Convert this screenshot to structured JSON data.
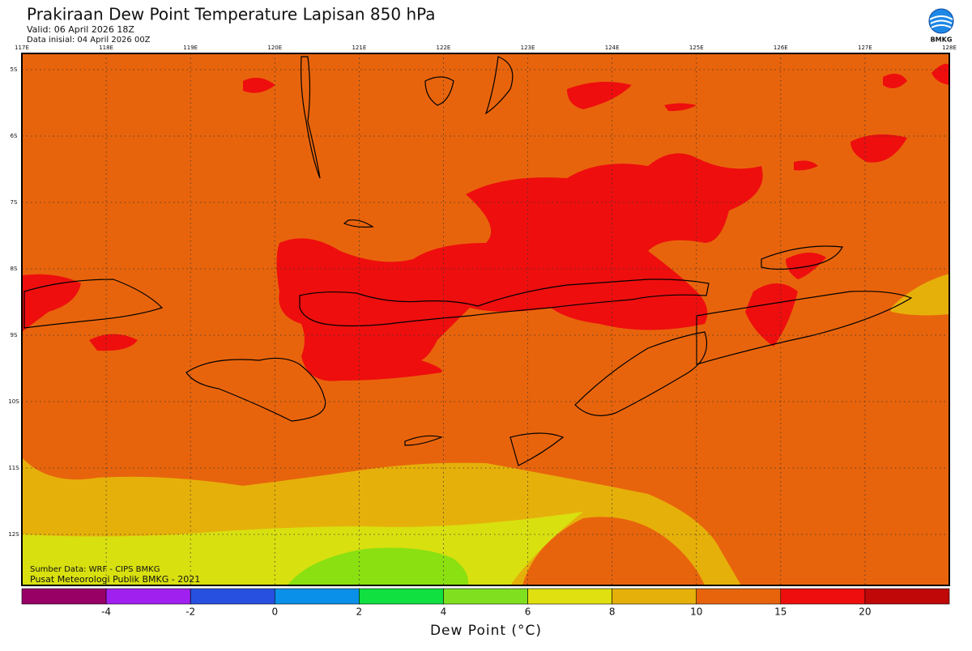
{
  "header": {
    "title": "Prakiraan Dew Point Temperature Lapisan 850 hPa",
    "valid": "Valid: 06 April 2026 18Z",
    "init": "Data inisial: 04 April 2026 00Z",
    "logo": "BMKG"
  },
  "map": {
    "lon_labels": [
      "117E",
      "118E",
      "119E",
      "120E",
      "121E",
      "122E",
      "123E",
      "124E",
      "125E",
      "126E",
      "127E",
      "128E"
    ],
    "lat_labels": [
      "5S",
      "6S",
      "7S",
      "8S",
      "9S",
      "10S",
      "11S",
      "12S"
    ],
    "credits": [
      "Sumber Data: WRF - CIPS BMKG",
      "Pusat Meteorologi Publik BMKG - 2021"
    ]
  },
  "colorbar": {
    "colors": [
      "#990066",
      "#a020f0",
      "#2850e0",
      "#0a90e8",
      "#10e040",
      "#80e020",
      "#e0e010",
      "#e6b00a",
      "#e8640c",
      "#ee0e0e",
      "#c00808"
    ],
    "ticks": [
      -4,
      -2,
      0,
      2,
      4,
      6,
      8,
      10,
      15,
      20
    ],
    "label": "Dew Point (°C)"
  }
}
